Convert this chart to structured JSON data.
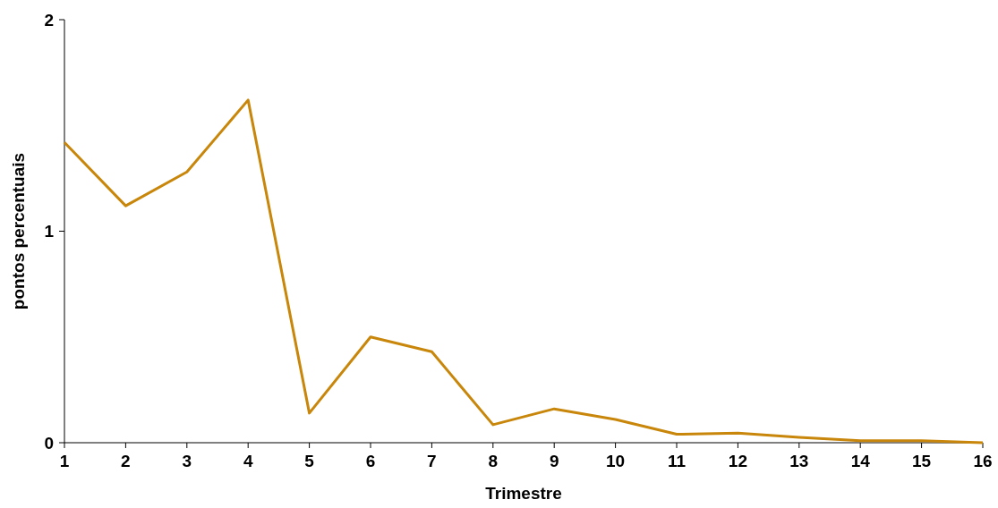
{
  "chart_data": {
    "type": "line",
    "xlabel": "Trimestre",
    "ylabel": "pontos percentuais",
    "x": [
      1,
      2,
      3,
      4,
      5,
      6,
      7,
      8,
      9,
      10,
      11,
      12,
      13,
      14,
      15,
      16
    ],
    "series": [
      {
        "color": "#c8860a",
        "values": [
          1.42,
          1.12,
          1.28,
          1.62,
          0.14,
          0.5,
          0.43,
          0.085,
          0.16,
          0.11,
          0.04,
          0.045,
          0.025,
          0.01,
          0.01,
          0
        ]
      }
    ],
    "xlim": [
      1,
      16
    ],
    "xticks": [
      1,
      2,
      3,
      4,
      5,
      6,
      7,
      8,
      9,
      10,
      11,
      12,
      13,
      14,
      15,
      16
    ],
    "ylim": [
      0,
      2
    ],
    "yticks": [
      0,
      1,
      2
    ],
    "grid": false,
    "marker": "none",
    "line_style": "solid"
  }
}
